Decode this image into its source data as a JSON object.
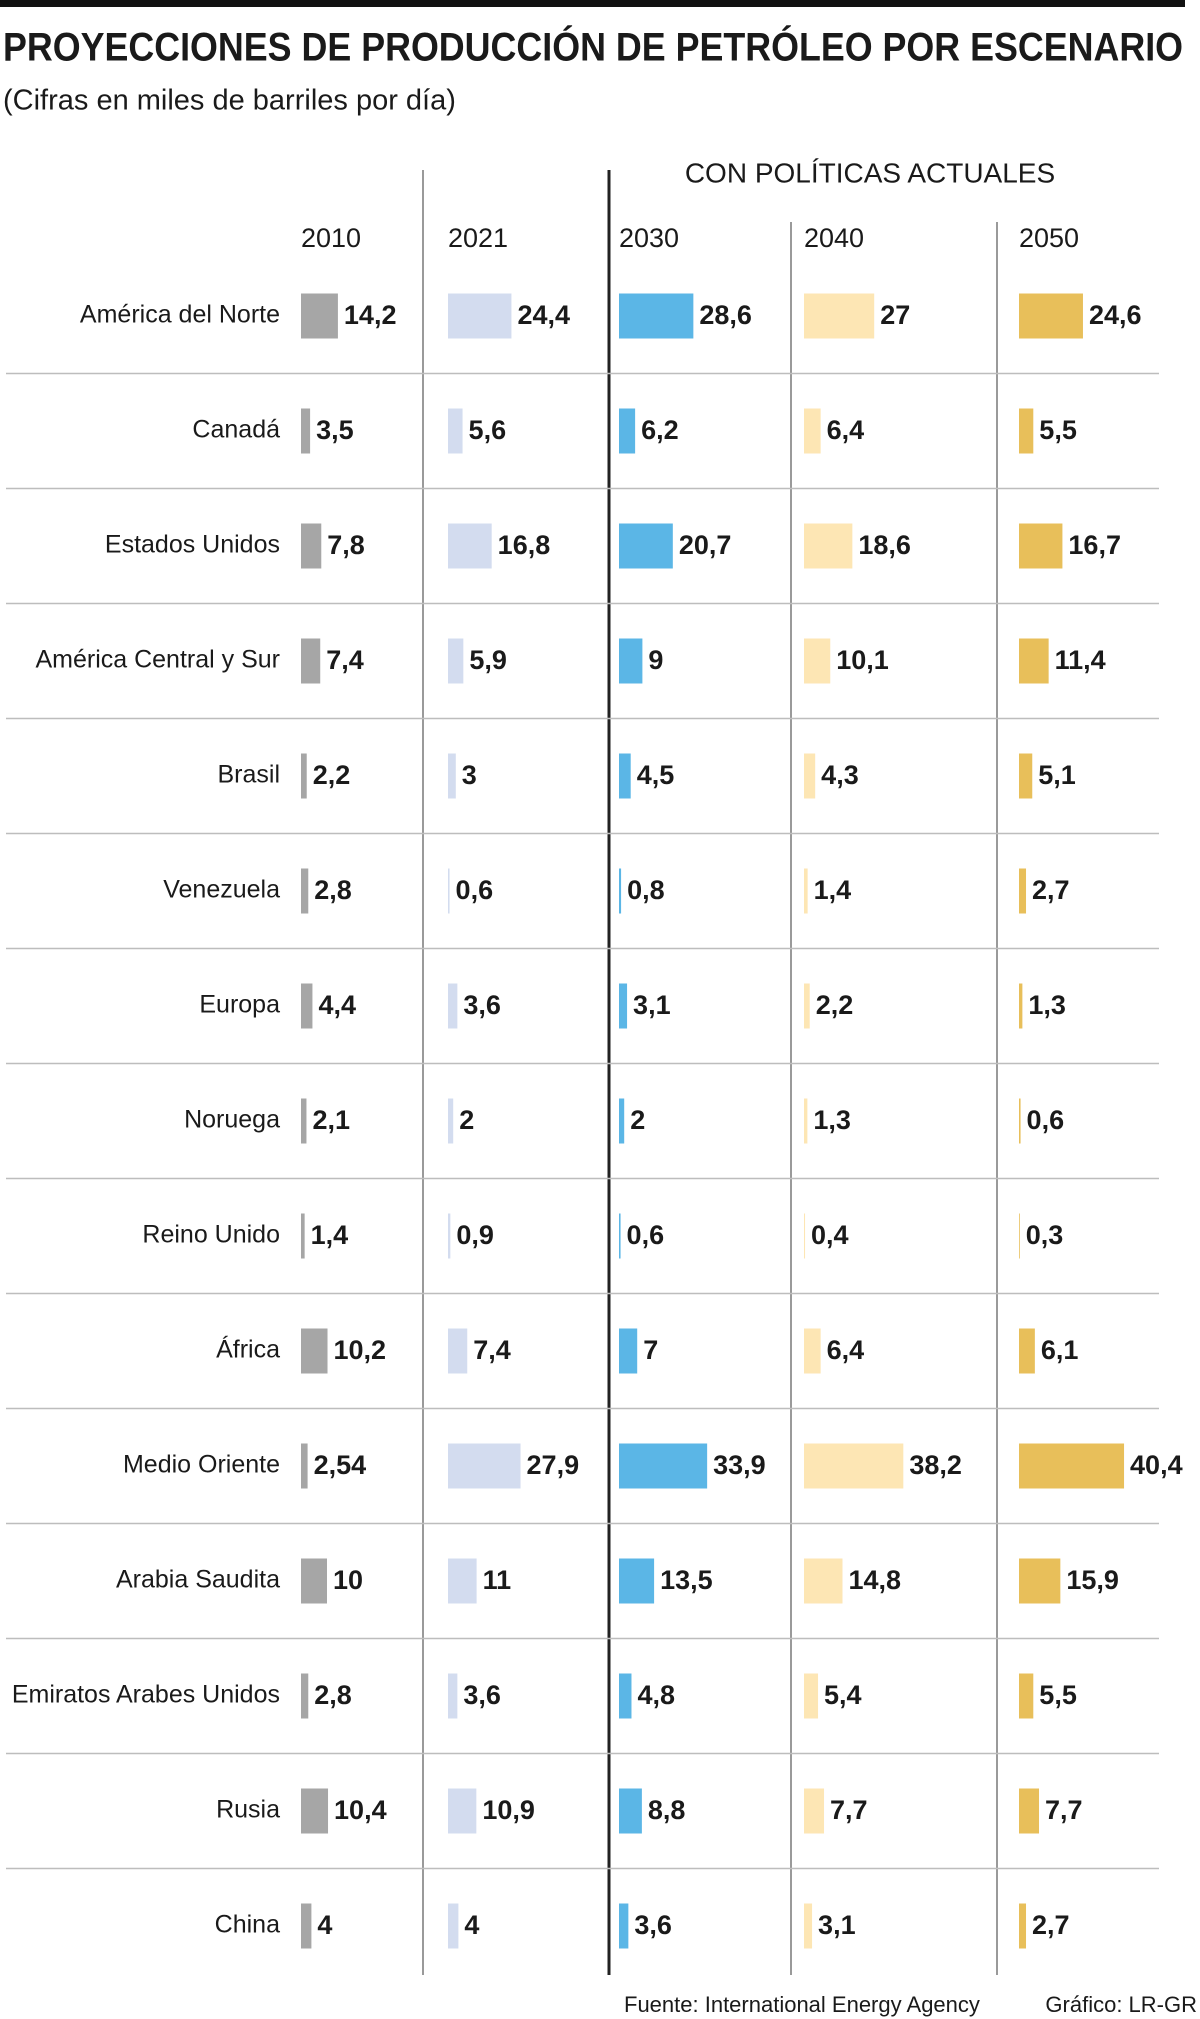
{
  "chart_data": {
    "type": "bar",
    "title": "PROYECCIONES DE PRODUCCIÓN DE PETRÓLEO POR ESCENARIO",
    "subtitle": "(Cifras en miles de barriles por día)",
    "group_label": "CON POLÍTICAS ACTUALES",
    "categories": [
      "América del Norte",
      "Canadá",
      "Estados Unidos",
      "América Central y Sur",
      "Brasil",
      "Venezuela",
      "Europa",
      "Noruega",
      "Reino Unido",
      "África",
      "Medio Oriente",
      "Arabia Saudita",
      "Emiratos Arabes Unidos",
      "Rusia",
      "China"
    ],
    "series": [
      {
        "name": "2010",
        "color": "#a6a6a6",
        "values": [
          14.2,
          3.5,
          7.8,
          7.4,
          2.2,
          2.8,
          4.4,
          2.1,
          1.4,
          10.2,
          2.54,
          10,
          2.8,
          10.4,
          4
        ],
        "value_labels": [
          "14,2",
          "3,5",
          "7,8",
          "7,4",
          "2,2",
          "2,8",
          "4,4",
          "2,1",
          "1,4",
          "10,2",
          "2,54",
          "10",
          "2,8",
          "10,4",
          "4"
        ]
      },
      {
        "name": "2021",
        "color": "#d3dcef",
        "values": [
          24.4,
          5.6,
          16.8,
          5.9,
          3,
          0.6,
          3.6,
          2,
          0.9,
          7.4,
          27.9,
          11,
          3.6,
          10.9,
          4
        ],
        "value_labels": [
          "24,4",
          "5,6",
          "16,8",
          "5,9",
          "3",
          "0,6",
          "3,6",
          "2",
          "0,9",
          "7,4",
          "27,9",
          "11",
          "3,6",
          "10,9",
          "4"
        ]
      },
      {
        "name": "2030",
        "color": "#5bb6e6",
        "values": [
          28.6,
          6.2,
          20.7,
          9,
          4.5,
          0.8,
          3.1,
          2,
          0.6,
          7,
          33.9,
          13.5,
          4.8,
          8.8,
          3.6
        ],
        "value_labels": [
          "28,6",
          "6,2",
          "20,7",
          "9",
          "4,5",
          "0,8",
          "3,1",
          "2",
          "0,6",
          "7",
          "33,9",
          "13,5",
          "4,8",
          "8,8",
          "3,6"
        ]
      },
      {
        "name": "2040",
        "color": "#fde6b4",
        "values": [
          27,
          6.4,
          18.6,
          10.1,
          4.3,
          1.4,
          2.2,
          1.3,
          0.4,
          6.4,
          38.2,
          14.8,
          5.4,
          7.7,
          3.1
        ],
        "value_labels": [
          "27",
          "6,4",
          "18,6",
          "10,1",
          "4,3",
          "1,4",
          "2,2",
          "1,3",
          "0,4",
          "6,4",
          "38,2",
          "14,8",
          "5,4",
          "7,7",
          "3,1"
        ]
      },
      {
        "name": "2050",
        "color": "#e8bf5a",
        "values": [
          24.6,
          5.5,
          16.7,
          11.4,
          5.1,
          2.7,
          1.3,
          0.6,
          0.3,
          6.1,
          40.4,
          15.9,
          5.5,
          7.7,
          2.7
        ],
        "value_labels": [
          "24,6",
          "5,5",
          "16,7",
          "11,4",
          "5,1",
          "2,7",
          "1,3",
          "0,6",
          "0,3",
          "6,1",
          "40,4",
          "15,9",
          "5,5",
          "7,7",
          "2,7"
        ]
      }
    ],
    "source": "Fuente: International Energy Agency",
    "credit": "Gráfico: LR-GR"
  }
}
